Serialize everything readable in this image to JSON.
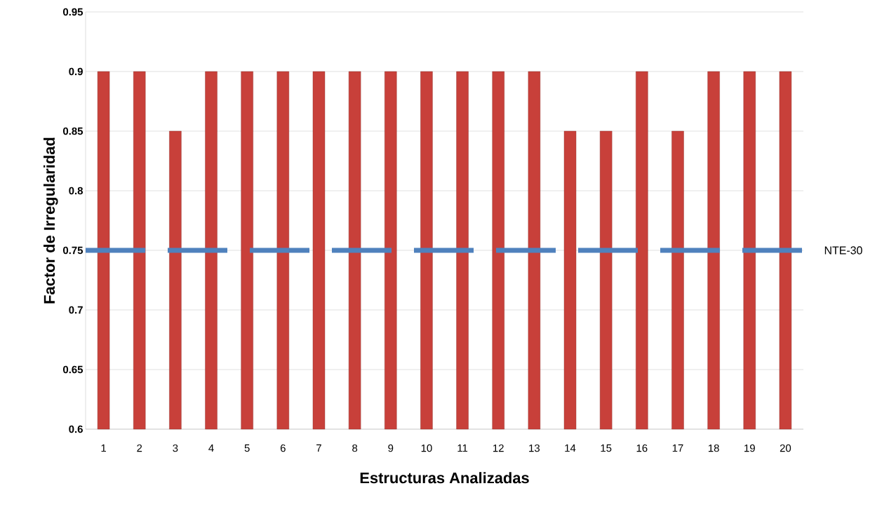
{
  "chart_data": {
    "type": "bar",
    "xlabel": "Estructuras Analizadas",
    "ylabel": "Factor de Irregularidad",
    "categories": [
      "1",
      "2",
      "3",
      "4",
      "5",
      "6",
      "7",
      "8",
      "9",
      "10",
      "11",
      "12",
      "13",
      "14",
      "15",
      "16",
      "17",
      "18",
      "19",
      "20"
    ],
    "values": [
      0.9,
      0.9,
      0.85,
      0.9,
      0.9,
      0.9,
      0.9,
      0.9,
      0.9,
      0.9,
      0.9,
      0.9,
      0.9,
      0.85,
      0.85,
      0.9,
      0.85,
      0.9,
      0.9,
      0.9
    ],
    "color": "#c8403a",
    "ylim": [
      0.6,
      0.95
    ],
    "yticks": [
      0.6,
      0.65,
      0.7,
      0.75,
      0.8,
      0.85,
      0.9,
      0.95
    ],
    "grid": "y",
    "ref_lines": [
      {
        "axis": "y",
        "value": 0.75,
        "label": "NTE-30",
        "color": "#4f81bd",
        "line_style": "dashed"
      }
    ]
  }
}
